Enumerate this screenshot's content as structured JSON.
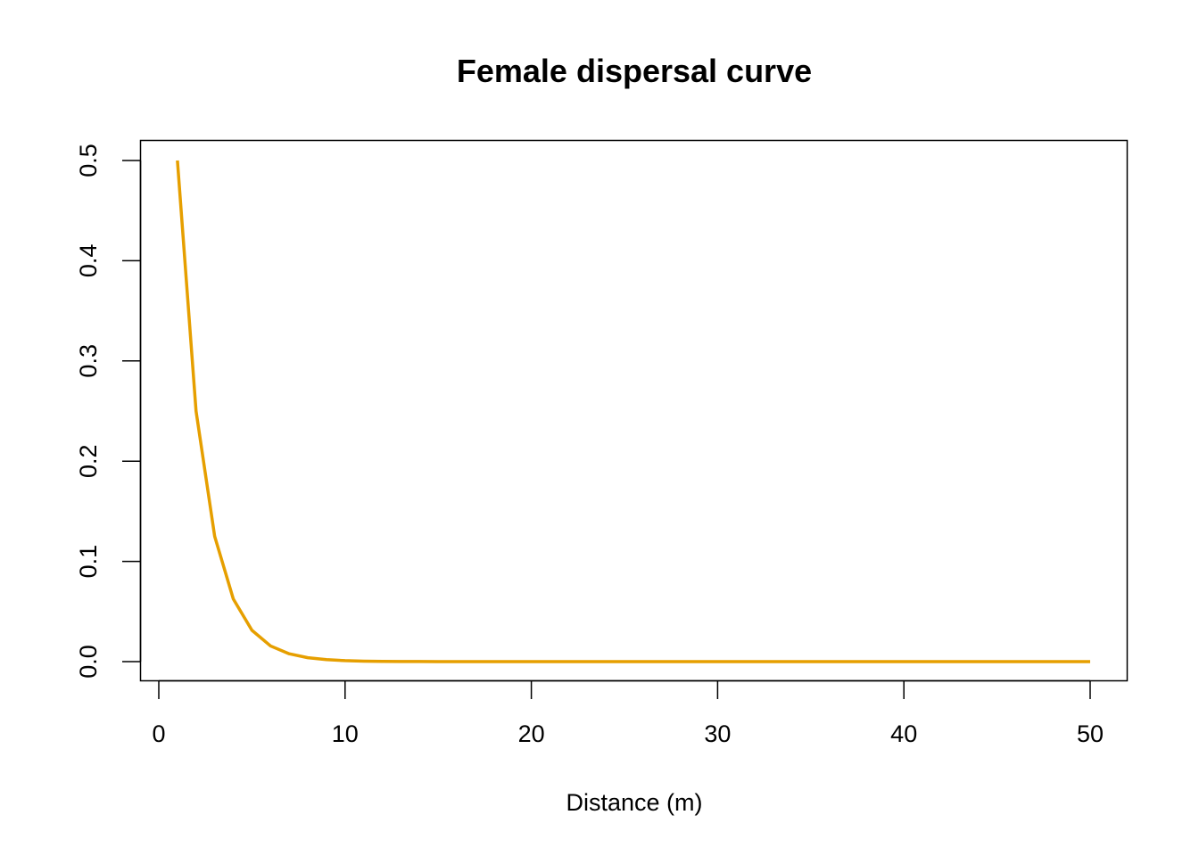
{
  "chart_data": {
    "type": "line",
    "title": "Female dispersal curve",
    "xlabel": "Distance (m)",
    "ylabel": "",
    "xlim": [
      0,
      50
    ],
    "ylim": [
      0,
      0.5
    ],
    "x_ticks": [
      0,
      10,
      20,
      30,
      40,
      50
    ],
    "x_tick_labels": [
      "0",
      "10",
      "20",
      "30",
      "40",
      "50"
    ],
    "y_ticks": [
      0,
      0.1,
      0.2,
      0.3,
      0.4,
      0.5
    ],
    "y_tick_labels": [
      "0.0",
      "0.1",
      "0.2",
      "0.3",
      "0.4",
      "0.5"
    ],
    "grid": false,
    "series": [
      {
        "color": "#E69F00",
        "x": [
          1,
          2,
          3,
          4,
          5,
          6,
          7,
          8,
          9,
          10,
          11,
          12,
          13,
          14,
          15,
          16,
          17,
          18,
          19,
          20,
          21,
          22,
          23,
          24,
          25,
          26,
          27,
          28,
          29,
          30,
          31,
          32,
          33,
          34,
          35,
          36,
          37,
          38,
          39,
          40,
          41,
          42,
          43,
          44,
          45,
          46,
          47,
          48,
          49,
          50
        ],
        "values": [
          0.5,
          0.25,
          0.125,
          0.0625,
          0.03125,
          0.015625,
          0.0078125,
          0.00390625,
          0.001953125,
          0.0009765625,
          0.00048828125,
          0.000244140625,
          0.0001220703125,
          6.103515625e-05,
          3.0517578125e-05,
          1.52587890625e-05,
          7.62939453125e-06,
          3.814697265625e-06,
          1.9073486328125e-06,
          9.5367431640625e-07,
          0,
          0,
          0,
          0,
          0,
          0,
          0,
          0,
          0,
          0,
          0,
          0,
          0,
          0,
          0,
          0,
          0,
          0,
          0,
          0,
          0,
          0,
          0,
          0,
          0,
          0,
          0,
          0,
          0,
          0
        ]
      }
    ]
  }
}
